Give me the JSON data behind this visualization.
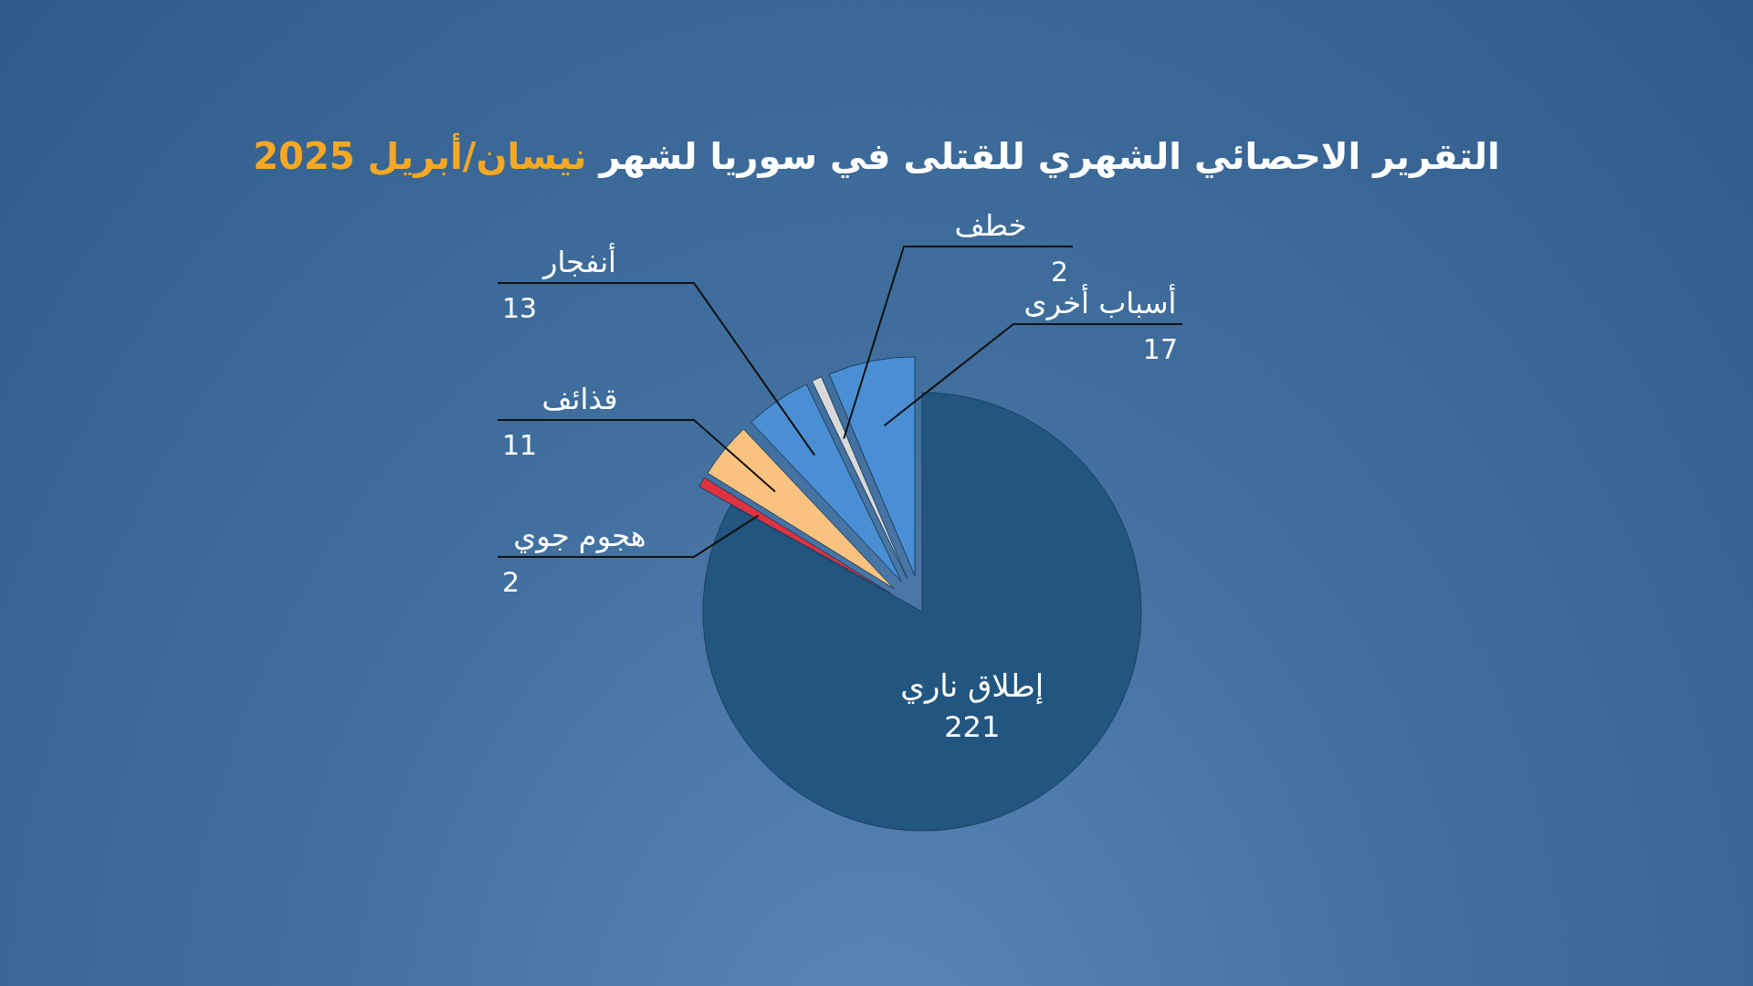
{
  "chart_data": {
    "type": "pie",
    "title": "التقرير الاحصائي الشهري للقتلى في سوريا لشهر نيسان/أبريل 2025",
    "categories": [
      "إطلاق ناري",
      "هجوم جوي",
      "قذائف",
      "أنفجار",
      "خطف",
      "أسباب أخرى"
    ],
    "values": [
      221,
      2,
      11,
      13,
      2,
      17
    ],
    "colors": [
      "#22557f",
      "#e0323f",
      "#f9c27e",
      "#4a8fd4",
      "#d9d9d9",
      "#4a8fd4"
    ],
    "data_labels": true
  }
}
